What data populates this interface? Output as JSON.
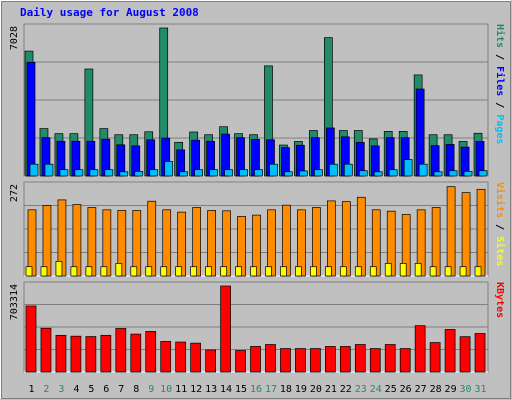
{
  "chart_data": {
    "type": "bar",
    "title": "Daily usage for August 2008",
    "categories": [
      "1",
      "2",
      "3",
      "4",
      "5",
      "6",
      "7",
      "8",
      "9",
      "10",
      "11",
      "12",
      "13",
      "14",
      "15",
      "16",
      "17",
      "18",
      "19",
      "20",
      "21",
      "22",
      "23",
      "24",
      "25",
      "26",
      "27",
      "28",
      "29",
      "30",
      "31"
    ],
    "weekend_days": [
      "2",
      "3",
      "9",
      "10",
      "16",
      "17",
      "23",
      "24",
      "30",
      "31"
    ],
    "panels": [
      {
        "id": "hits",
        "ylabel": [
          "Pages",
          "Files",
          "Hits"
        ],
        "ymax_label": "7028",
        "ylim": [
          0,
          7028
        ],
        "grid": true,
        "series": [
          {
            "name": "Hits",
            "color": "#228b68",
            "values": [
              5930,
              2250,
              2010,
              2010,
              5080,
              2250,
              1960,
              1960,
              2100,
              7028,
              1600,
              2090,
              1960,
              2340,
              2010,
              1960,
              5230,
              1470,
              1640,
              2160,
              6570,
              2160,
              2160,
              1760,
              2120,
              2120,
              4800,
              1960,
              1960,
              1640,
              2030
            ]
          },
          {
            "name": "Files",
            "color": "#0000ff",
            "values": [
              5400,
              1820,
              1650,
              1650,
              1650,
              1750,
              1480,
              1430,
              1720,
              1800,
              1240,
              1700,
              1650,
              1990,
              1820,
              1740,
              1720,
              1350,
              1460,
              1820,
              2280,
              1860,
              1600,
              1430,
              1820,
              1820,
              4130,
              1440,
              1500,
              1370,
              1640
            ]
          },
          {
            "name": "Pages",
            "color": "#00bfff",
            "values": [
              560,
              560,
              300,
              300,
              300,
              300,
              200,
              220,
              300,
              690,
              200,
              300,
              300,
              300,
              300,
              300,
              560,
              200,
              240,
              300,
              560,
              560,
              250,
              200,
              300,
              780,
              560,
              200,
              250,
              220,
              250
            ]
          }
        ]
      },
      {
        "id": "visits",
        "ylabel": [
          "Sites",
          "Visits"
        ],
        "ymax_label": "272",
        "ylim": [
          0,
          272
        ],
        "grid": true,
        "series": [
          {
            "name": "Visits",
            "color": "#ff8c00",
            "values": [
              200,
              213,
              230,
              216,
              207,
              200,
              198,
              198,
              226,
              200,
              193,
              207,
              198,
              197,
              180,
              184,
              200,
              214,
              200,
              207,
              227,
              225,
              238,
              200,
              196,
              186,
              200,
              207,
              270,
              252,
              262
            ]
          },
          {
            "name": "Sites",
            "color": "#ffff00",
            "values": [
              28,
              28,
              44,
              28,
              28,
              28,
              38,
              28,
              28,
              28,
              28,
              28,
              28,
              28,
              28,
              28,
              28,
              28,
              28,
              28,
              28,
              28,
              28,
              28,
              38,
              38,
              38,
              28,
              28,
              28,
              28
            ]
          }
        ]
      },
      {
        "id": "kbytes",
        "ylabel": [
          "KBytes"
        ],
        "ymax_label": "703314",
        "ylim": [
          0,
          703314
        ],
        "grid": true,
        "series": [
          {
            "name": "KBytes",
            "color": "#ff0000",
            "values": [
              540000,
              358000,
              300000,
              293000,
              290000,
              300000,
              356000,
              310000,
              332000,
              250000,
              245000,
              236000,
              180000,
              703314,
              176000,
              209000,
              225000,
              192000,
              192000,
              192000,
              209000,
              209000,
              225000,
              192000,
              225000,
              192000,
              379000,
              241000,
              348000,
              289000,
              315000
            ]
          }
        ]
      }
    ]
  }
}
